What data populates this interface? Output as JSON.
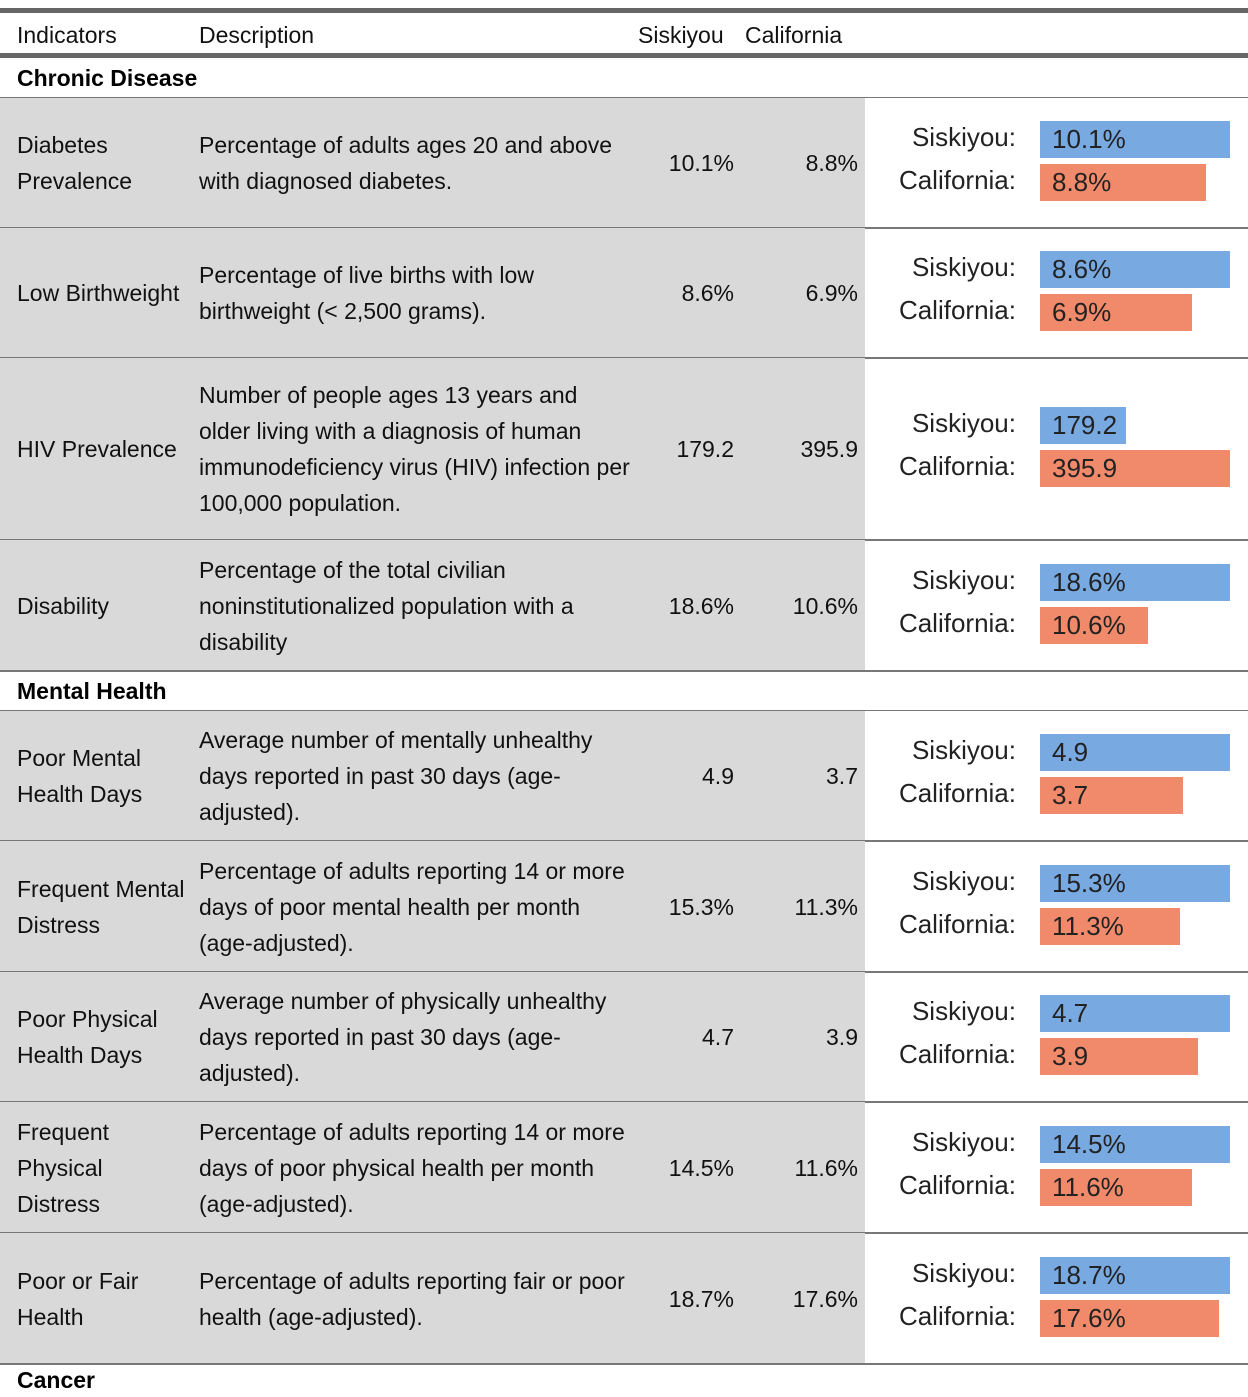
{
  "header": {
    "columns": [
      "Indicators",
      "Description",
      "Siskiyou",
      "California"
    ]
  },
  "bar_labels": [
    "Siskiyou:",
    "California:"
  ],
  "bar_colors": [
    "#78a9e0",
    "#f08a6b"
  ],
  "sections": [
    {
      "title": "Chronic Disease",
      "rows": [
        {
          "indicator": "Diabetes Prevalence",
          "description": "Percentage of adults ages 20 and above with diagnosed diabetes.",
          "values": [
            10.1,
            8.8
          ],
          "value_labels": [
            "10.1%",
            "8.8%"
          ]
        },
        {
          "indicator": "Low Birthweight",
          "description": "Percentage of live births with low birthweight (< 2,500 grams).",
          "values": [
            8.6,
            6.9
          ],
          "value_labels": [
            "8.6%",
            "6.9%"
          ]
        },
        {
          "indicator": "HIV Prevalence",
          "description": "Number of people ages 13 years and older living with a diagnosis of human immunodeficiency virus (HIV) infection per 100,000 population.",
          "values": [
            179.2,
            395.9
          ]
        },
        {
          "indicator": "Disability",
          "description": "Percentage of the total civilian noninstitutionalized population with a disability",
          "values": [
            18.6,
            10.6
          ],
          "value_labels": [
            "18.6%",
            "10.6%"
          ]
        }
      ]
    },
    {
      "title": "Mental Health",
      "rows": [
        {
          "indicator": "Poor Mental Health Days",
          "description": "Average number of mentally unhealthy days reported in past 30 days (age-adjusted).",
          "values": [
            4.9,
            3.7
          ]
        },
        {
          "indicator": "Frequent Mental Distress",
          "description": "Percentage of adults reporting 14 or more days of poor mental health per month (age-adjusted).",
          "values": [
            15.3,
            11.3
          ],
          "value_labels": [
            "15.3%",
            "11.3%"
          ]
        },
        {
          "indicator": "Poor Physical Health Days",
          "description": "Average number of physically unhealthy days reported in past 30 days (age-adjusted).",
          "values": [
            4.7,
            3.9
          ]
        },
        {
          "indicator": "Frequent Physical Distress",
          "description": "Percentage of adults reporting 14 or more days of poor physical health per month (age-adjusted).",
          "values": [
            14.5,
            11.6
          ],
          "value_labels": [
            "14.5%",
            "11.6%"
          ]
        },
        {
          "indicator": "Poor or Fair Health",
          "description": "Percentage of adults reporting fair or poor health (age-adjusted).",
          "values": [
            18.7,
            17.6
          ],
          "value_labels": [
            "18.7%",
            "17.6%"
          ]
        }
      ]
    },
    {
      "title": "Cancer",
      "rows": []
    }
  ]
}
